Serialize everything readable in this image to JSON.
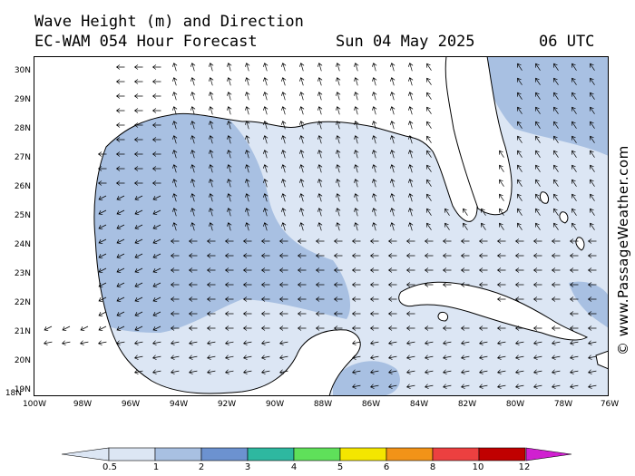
{
  "header": {
    "line1": "Wave Height (m) and Direction",
    "model": "EC-WAM 054 Hour Forecast",
    "date": "Sun 04 May 2025",
    "time": "06 UTC"
  },
  "watermark": "© www.PassageWeather.com",
  "map": {
    "lat_labels": [
      "30N",
      "29N",
      "28N",
      "27N",
      "26N",
      "25N",
      "24N",
      "23N",
      "22N",
      "21N",
      "20N",
      "19N",
      "18N"
    ],
    "lon_labels": [
      "100W",
      "98W",
      "96W",
      "94W",
      "92W",
      "90W",
      "88W",
      "86W",
      "84W",
      "82W",
      "80W",
      "78W",
      "76W"
    ],
    "land_color": "#ffffff",
    "region": "Gulf of Mexico",
    "wave_field": "mostly 0.5-1 m, pockets of 1-2 m in western Gulf, northern Gulf and off SE Florida",
    "arrow_direction": "waves propagating mainly from east to west, turning north-west over central Gulf"
  },
  "colorbar": {
    "labels": [
      "0.5",
      "1",
      "2",
      "3",
      "4",
      "5",
      "6",
      "8",
      "10",
      "12"
    ],
    "colors": [
      "#dce6f4",
      "#a8c0e2",
      "#6c92d0",
      "#2eb8a0",
      "#5fe05a",
      "#f4e600",
      "#f29318",
      "#ec4040",
      "#c00000",
      "#d020d0"
    ]
  }
}
